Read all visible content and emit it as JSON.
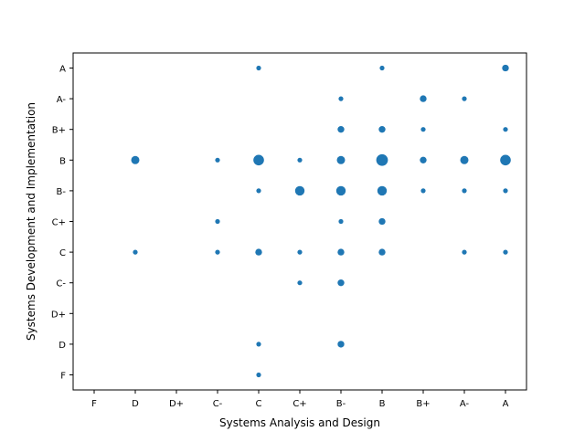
{
  "chart_data": {
    "type": "scatter",
    "title": "",
    "xlabel": "Systems Analysis and Design",
    "ylabel": "Systems Development and Implementation",
    "x_categories": [
      "F",
      "D",
      "D+",
      "C-",
      "C",
      "C+",
      "B-",
      "B",
      "B+",
      "A-",
      "A"
    ],
    "y_categories": [
      "F",
      "D",
      "D+",
      "C-",
      "C",
      "C+",
      "B-",
      "B",
      "B+",
      "A-",
      "A"
    ],
    "grid": false,
    "legend": "none",
    "color": "#1f77b4",
    "points": [
      {
        "x": "C",
        "y": "A",
        "count": 1
      },
      {
        "x": "B",
        "y": "A",
        "count": 1
      },
      {
        "x": "A",
        "y": "A",
        "count": 2
      },
      {
        "x": "B-",
        "y": "A-",
        "count": 1
      },
      {
        "x": "B+",
        "y": "A-",
        "count": 2
      },
      {
        "x": "A-",
        "y": "A-",
        "count": 1
      },
      {
        "x": "B-",
        "y": "B+",
        "count": 2
      },
      {
        "x": "B",
        "y": "B+",
        "count": 2
      },
      {
        "x": "B+",
        "y": "B+",
        "count": 1
      },
      {
        "x": "A",
        "y": "B+",
        "count": 1
      },
      {
        "x": "D",
        "y": "B",
        "count": 3
      },
      {
        "x": "C-",
        "y": "B",
        "count": 1
      },
      {
        "x": "C",
        "y": "B",
        "count": 5
      },
      {
        "x": "C+",
        "y": "B",
        "count": 1
      },
      {
        "x": "B-",
        "y": "B",
        "count": 3
      },
      {
        "x": "B",
        "y": "B",
        "count": 6
      },
      {
        "x": "B+",
        "y": "B",
        "count": 2
      },
      {
        "x": "A-",
        "y": "B",
        "count": 3
      },
      {
        "x": "A",
        "y": "B",
        "count": 5
      },
      {
        "x": "C",
        "y": "B-",
        "count": 1
      },
      {
        "x": "C+",
        "y": "B-",
        "count": 4
      },
      {
        "x": "B-",
        "y": "B-",
        "count": 4
      },
      {
        "x": "B",
        "y": "B-",
        "count": 4
      },
      {
        "x": "B+",
        "y": "B-",
        "count": 1
      },
      {
        "x": "A-",
        "y": "B-",
        "count": 1
      },
      {
        "x": "A",
        "y": "B-",
        "count": 1
      },
      {
        "x": "C-",
        "y": "C+",
        "count": 1
      },
      {
        "x": "B-",
        "y": "C+",
        "count": 1
      },
      {
        "x": "B",
        "y": "C+",
        "count": 2
      },
      {
        "x": "D",
        "y": "C",
        "count": 1
      },
      {
        "x": "C-",
        "y": "C",
        "count": 1
      },
      {
        "x": "C",
        "y": "C",
        "count": 2
      },
      {
        "x": "C+",
        "y": "C",
        "count": 1
      },
      {
        "x": "B-",
        "y": "C",
        "count": 2
      },
      {
        "x": "B",
        "y": "C",
        "count": 2
      },
      {
        "x": "A-",
        "y": "C",
        "count": 1
      },
      {
        "x": "A",
        "y": "C",
        "count": 1
      },
      {
        "x": "C+",
        "y": "C-",
        "count": 1
      },
      {
        "x": "B-",
        "y": "C-",
        "count": 2
      },
      {
        "x": "C",
        "y": "D",
        "count": 1
      },
      {
        "x": "B-",
        "y": "D",
        "count": 2
      },
      {
        "x": "C",
        "y": "F",
        "count": 1
      }
    ]
  }
}
